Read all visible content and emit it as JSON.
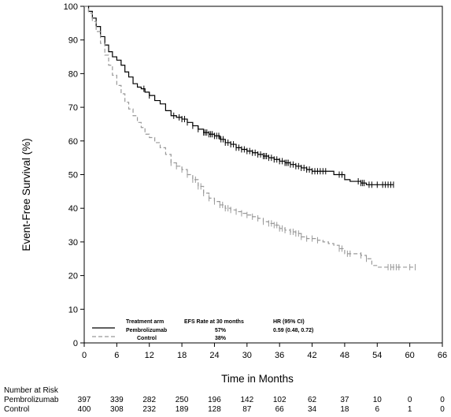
{
  "chart_data": {
    "type": "line",
    "title": "",
    "xlabel": "Time in Months",
    "ylabel": "Event-Free Survival (%)",
    "xlim": [
      0,
      66
    ],
    "ylim": [
      0,
      100
    ],
    "xticks": [
      0,
      6,
      12,
      18,
      24,
      30,
      36,
      42,
      48,
      54,
      60,
      66
    ],
    "yticks": [
      0,
      10,
      20,
      30,
      40,
      50,
      60,
      70,
      80,
      90,
      100
    ],
    "grid": false,
    "legend": {
      "position": "bottom-left",
      "header": {
        "arm": "Treatment arm",
        "rate": "EFS Rate at 30 months",
        "hr": "HR (95% CI)"
      },
      "entries": [
        {
          "name": "Pembrolizumab",
          "rate": "57%",
          "hr": "0.59 (0.48, 0.72)",
          "color": "#000000",
          "dash": "solid"
        },
        {
          "name": "Control",
          "rate": "38%",
          "hr": "",
          "color": "#999999",
          "dash": "dashed"
        }
      ]
    },
    "series": [
      {
        "name": "Pembrolizumab",
        "color": "#000000",
        "dash": "solid",
        "x": [
          0,
          0.8,
          1.5,
          2.2,
          3,
          3.8,
          4.5,
          5.2,
          6,
          6.8,
          7.5,
          8.2,
          9,
          9.8,
          10.5,
          11.2,
          12,
          13,
          14,
          15,
          16,
          17,
          18,
          19,
          20,
          21,
          22,
          23,
          24,
          25,
          26,
          27,
          28,
          29,
          30,
          31,
          32,
          33,
          34,
          35,
          36,
          37,
          38,
          39,
          40,
          41,
          42,
          43,
          44,
          45,
          46,
          47,
          48,
          49,
          50,
          51,
          52,
          53,
          54,
          55,
          56,
          57
        ],
        "y": [
          100,
          98.5,
          96.5,
          94,
          91,
          88.5,
          86.5,
          85,
          84,
          82.5,
          80.5,
          79,
          77,
          76,
          75.5,
          74.5,
          73.5,
          72,
          71,
          69,
          67.5,
          67,
          66.5,
          65.5,
          64.5,
          63.5,
          62.5,
          62,
          61.5,
          60.5,
          59.5,
          59,
          58,
          57.5,
          57,
          56.5,
          56,
          55.5,
          55,
          54.5,
          54,
          53.5,
          53,
          52.5,
          52,
          51.5,
          51,
          51,
          51,
          51,
          50,
          50,
          48.5,
          48,
          48,
          47.5,
          47,
          47,
          47,
          47,
          47,
          47
        ]
      },
      {
        "name": "Control",
        "color": "#999999",
        "dash": "dashed",
        "x": [
          0,
          0.8,
          1.5,
          2.2,
          3,
          3.8,
          4.5,
          5.2,
          6,
          6.8,
          7.5,
          8.2,
          9,
          9.8,
          10.5,
          11.2,
          12,
          13,
          14,
          15,
          16,
          17,
          18,
          19,
          20,
          21,
          22,
          23,
          24,
          25,
          26,
          27,
          28,
          29,
          30,
          31,
          32,
          33,
          34,
          35,
          36,
          37,
          38,
          39,
          40,
          41,
          42,
          43,
          44,
          45,
          46,
          47,
          48,
          49,
          50,
          51,
          52,
          53,
          54,
          55,
          56,
          57,
          58,
          59,
          60,
          61
        ],
        "y": [
          100,
          98,
          95.5,
          92.5,
          89,
          85.5,
          82.5,
          79.5,
          76.5,
          74,
          71.5,
          69.5,
          67.5,
          65.5,
          64,
          62,
          61,
          59.5,
          58,
          56,
          53.5,
          52.5,
          51.5,
          50,
          48.5,
          46.5,
          44.5,
          43,
          42,
          41,
          40,
          39.5,
          39,
          38.5,
          38,
          37.5,
          37,
          36,
          35.5,
          35,
          34,
          33.5,
          33,
          32.5,
          31.5,
          31,
          31,
          30.5,
          30,
          29.5,
          29,
          28,
          26.5,
          26.5,
          26.5,
          26,
          25,
          23,
          22.5,
          22.5,
          22.5,
          22.5,
          22.5,
          22.5,
          22.5,
          22.5
        ]
      }
    ],
    "censor_marks": {
      "Pembrolizumab": [
        11,
        12,
        16.5,
        17.5,
        18,
        18.5,
        19,
        20,
        21,
        22,
        22.3,
        22.6,
        23,
        23.3,
        23.6,
        24,
        24.4,
        24.8,
        25.2,
        25.6,
        26,
        26.5,
        27,
        27.5,
        28,
        28.5,
        29,
        29.5,
        30,
        30.5,
        31,
        31.5,
        32,
        32.5,
        33,
        33.3,
        33.6,
        34,
        34.5,
        35,
        35.5,
        36,
        36.5,
        37,
        37.3,
        37.6,
        38,
        38.5,
        39,
        39.5,
        40,
        40.5,
        41,
        41.5,
        42,
        42.5,
        43,
        43.5,
        44,
        44.5,
        47,
        47.5,
        50.5,
        51,
        51.3,
        51.6,
        52.5,
        53,
        54,
        55,
        55.5,
        56,
        56.5,
        57
      ],
      "Control": [
        16,
        17,
        18,
        19,
        20,
        20.5,
        21,
        21.5,
        22,
        23,
        24,
        25,
        25.5,
        26,
        26.5,
        27,
        28,
        29,
        30,
        31,
        32,
        33,
        34,
        34.5,
        35,
        35.5,
        36,
        36.5,
        37,
        38,
        38.5,
        39,
        39.5,
        40,
        41,
        42,
        43,
        47,
        47.5,
        48.5,
        49,
        51,
        52,
        56,
        56.5,
        57,
        57.5,
        58,
        60,
        61
      ]
    },
    "number_at_risk": {
      "title": "Number at Risk",
      "times": [
        0,
        6,
        12,
        18,
        24,
        30,
        36,
        42,
        48,
        54,
        60,
        66
      ],
      "rows": [
        {
          "name": "Pembrolizumab",
          "values": [
            397,
            339,
            282,
            250,
            196,
            142,
            102,
            62,
            37,
            10,
            0,
            0
          ]
        },
        {
          "name": "Control",
          "values": [
            400,
            308,
            232,
            189,
            128,
            87,
            66,
            34,
            18,
            6,
            1,
            0
          ]
        }
      ]
    }
  }
}
